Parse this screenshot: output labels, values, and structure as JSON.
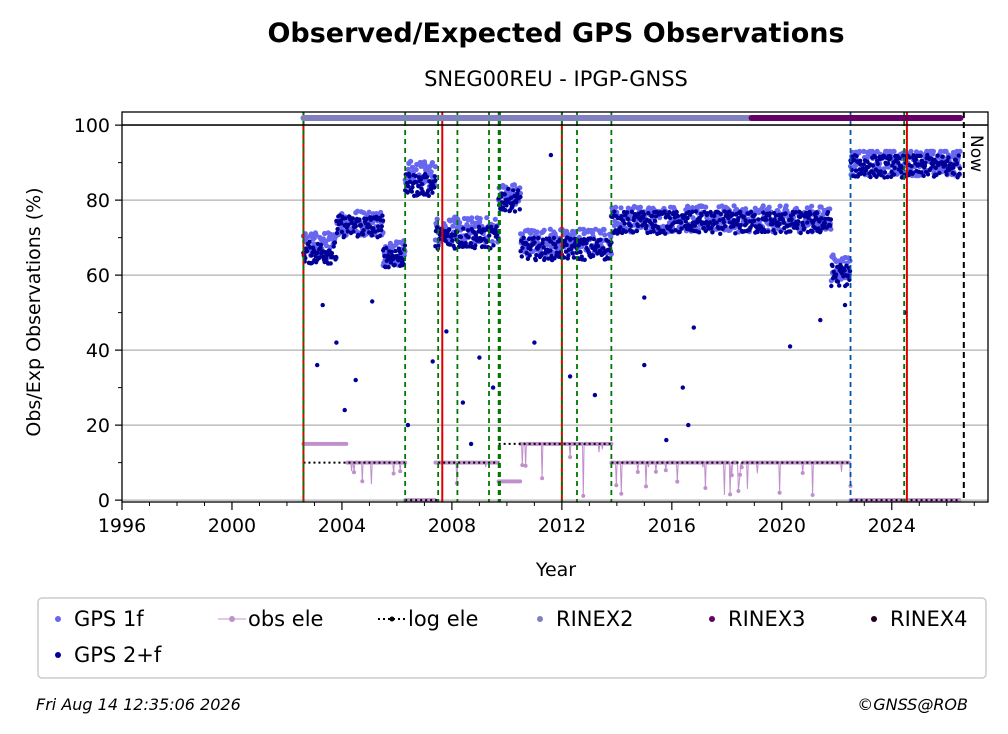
{
  "chart_data": {
    "type": "scatter",
    "title": "Observed/Expected GPS Observations",
    "subtitle": "SNEG00REU - IPGP-GNSS",
    "xlabel": "Year",
    "ylabel": "Obs/Exp Observations (%)",
    "xlim": [
      1996,
      2027.5
    ],
    "ylim": [
      -0.5,
      103.5
    ],
    "x_ticks": [
      1996,
      2000,
      2004,
      2008,
      2012,
      2016,
      2020,
      2024
    ],
    "y_ticks": [
      0,
      20,
      40,
      60,
      80,
      100
    ],
    "grid": "horizontal",
    "legend_position": "bottom",
    "colors": {
      "gps_1f": "#6666ee",
      "gps_2f": "#000099",
      "obs_ele": "#c090cc",
      "log_ele": "#000000",
      "rinex2": "#8080c0",
      "rinex3": "#660066",
      "rinex4": "#220022",
      "event_green": "#007700",
      "event_red": "#dd0000",
      "event_blue": "#0055aa"
    },
    "now_label": "Now",
    "now_x": 2026.62,
    "events": [
      {
        "x": 2002.6,
        "type": "red"
      },
      {
        "x": 2002.6,
        "type": "green"
      },
      {
        "x": 2006.3,
        "type": "green"
      },
      {
        "x": 2007.5,
        "type": "green"
      },
      {
        "x": 2007.65,
        "type": "red"
      },
      {
        "x": 2008.2,
        "type": "green"
      },
      {
        "x": 2009.35,
        "type": "green"
      },
      {
        "x": 2009.7,
        "type": "green"
      },
      {
        "x": 2009.75,
        "type": "green"
      },
      {
        "x": 2012.0,
        "type": "red"
      },
      {
        "x": 2012.0,
        "type": "green"
      },
      {
        "x": 2012.55,
        "type": "green"
      },
      {
        "x": 2013.8,
        "type": "green"
      },
      {
        "x": 2022.5,
        "type": "blue"
      },
      {
        "x": 2024.45,
        "type": "green"
      },
      {
        "x": 2024.55,
        "type": "red"
      }
    ],
    "rinex_bars": [
      {
        "name": "RINEX2",
        "x0": 2002.6,
        "x1": 2018.9
      },
      {
        "name": "RINEX3",
        "x0": 2018.9,
        "x1": 2026.5
      }
    ],
    "series": [
      {
        "name": "GPS 1f",
        "segments": [
          {
            "x0": 2002.6,
            "x1": 2003.8,
            "y": 68
          },
          {
            "x0": 2003.8,
            "x1": 2005.5,
            "y": 74
          },
          {
            "x0": 2005.5,
            "x1": 2006.3,
            "y": 66
          },
          {
            "x0": 2006.3,
            "x1": 2007.4,
            "y": 87
          },
          {
            "x0": 2007.4,
            "x1": 2009.7,
            "y": 72
          },
          {
            "x0": 2009.7,
            "x1": 2010.5,
            "y": 81
          },
          {
            "x0": 2010.5,
            "x1": 2013.8,
            "y": 69
          },
          {
            "x0": 2013.8,
            "x1": 2021.8,
            "y": 75
          },
          {
            "x0": 2021.8,
            "x1": 2022.5,
            "y": 62
          },
          {
            "x0": 2022.5,
            "x1": 2026.5,
            "y": 90
          }
        ]
      },
      {
        "name": "GPS 2+f",
        "segments": [
          {
            "x0": 2002.6,
            "x1": 2003.8,
            "y": 66
          },
          {
            "x0": 2003.8,
            "x1": 2005.5,
            "y": 73
          },
          {
            "x0": 2005.5,
            "x1": 2006.3,
            "y": 65
          },
          {
            "x0": 2006.3,
            "x1": 2007.4,
            "y": 84
          },
          {
            "x0": 2007.4,
            "x1": 2009.7,
            "y": 70
          },
          {
            "x0": 2009.7,
            "x1": 2010.5,
            "y": 80
          },
          {
            "x0": 2010.5,
            "x1": 2013.8,
            "y": 67
          },
          {
            "x0": 2013.8,
            "x1": 2021.8,
            "y": 74
          },
          {
            "x0": 2021.8,
            "x1": 2022.5,
            "y": 60
          },
          {
            "x0": 2022.5,
            "x1": 2026.5,
            "y": 89
          }
        ]
      },
      {
        "name": "obs ele",
        "segments": [
          {
            "x0": 2002.6,
            "x1": 2004.2,
            "y": 15
          },
          {
            "x0": 2004.2,
            "x1": 2006.3,
            "y": 10
          },
          {
            "x0": 2006.3,
            "x1": 2007.4,
            "y": 0
          },
          {
            "x0": 2007.4,
            "x1": 2009.7,
            "y": 10
          },
          {
            "x0": 2009.7,
            "x1": 2010.5,
            "y": 5
          },
          {
            "x0": 2010.5,
            "x1": 2013.8,
            "y": 15
          },
          {
            "x0": 2013.8,
            "x1": 2022.5,
            "y": 10
          },
          {
            "x0": 2022.5,
            "x1": 2026.5,
            "y": 0
          }
        ]
      },
      {
        "name": "log ele",
        "segments": [
          {
            "x0": 2002.6,
            "x1": 2006.3,
            "y": 10
          },
          {
            "x0": 2006.3,
            "x1": 2007.5,
            "y": 0
          },
          {
            "x0": 2007.5,
            "x1": 2009.7,
            "y": 10
          },
          {
            "x0": 2009.7,
            "x1": 2013.8,
            "y": 15
          },
          {
            "x0": 2013.8,
            "x1": 2022.5,
            "y": 10
          },
          {
            "x0": 2022.5,
            "x1": 2026.5,
            "y": 0
          }
        ]
      }
    ],
    "outliers": [
      {
        "x": 2003.1,
        "y": 36
      },
      {
        "x": 2003.3,
        "y": 52
      },
      {
        "x": 2003.8,
        "y": 42
      },
      {
        "x": 2004.1,
        "y": 24
      },
      {
        "x": 2004.5,
        "y": 32
      },
      {
        "x": 2005.1,
        "y": 53
      },
      {
        "x": 2006.4,
        "y": 20
      },
      {
        "x": 2007.3,
        "y": 37
      },
      {
        "x": 2007.8,
        "y": 45
      },
      {
        "x": 2008.4,
        "y": 26
      },
      {
        "x": 2008.7,
        "y": 15
      },
      {
        "x": 2009.0,
        "y": 38
      },
      {
        "x": 2009.5,
        "y": 30
      },
      {
        "x": 2011.0,
        "y": 42
      },
      {
        "x": 2011.6,
        "y": 92
      },
      {
        "x": 2012.3,
        "y": 33
      },
      {
        "x": 2013.2,
        "y": 28
      },
      {
        "x": 2015.0,
        "y": 36
      },
      {
        "x": 2015.0,
        "y": 54
      },
      {
        "x": 2015.8,
        "y": 16
      },
      {
        "x": 2016.4,
        "y": 30
      },
      {
        "x": 2016.6,
        "y": 20
      },
      {
        "x": 2016.8,
        "y": 46
      },
      {
        "x": 2020.3,
        "y": 41
      },
      {
        "x": 2021.4,
        "y": 48
      },
      {
        "x": 2022.3,
        "y": 52
      },
      {
        "x": 2024.5,
        "y": 50
      }
    ]
  },
  "legend": [
    {
      "label": "GPS 1f",
      "marker": "dot",
      "color": "#6666ee"
    },
    {
      "label": "obs ele",
      "marker": "line-dot",
      "color": "#c090cc"
    },
    {
      "label": "log ele",
      "marker": "dotted-line",
      "color": "#000000"
    },
    {
      "label": "RINEX2",
      "marker": "dot",
      "color": "#8080c0"
    },
    {
      "label": "RINEX3",
      "marker": "dot",
      "color": "#660066"
    },
    {
      "label": "RINEX4",
      "marker": "dot",
      "color": "#220022"
    },
    {
      "label": "GPS 2+f",
      "marker": "dot",
      "color": "#000099"
    }
  ],
  "footer": {
    "timestamp": "Fri Aug 14 12:35:06 2026",
    "credit": "©GNSS@ROB"
  }
}
